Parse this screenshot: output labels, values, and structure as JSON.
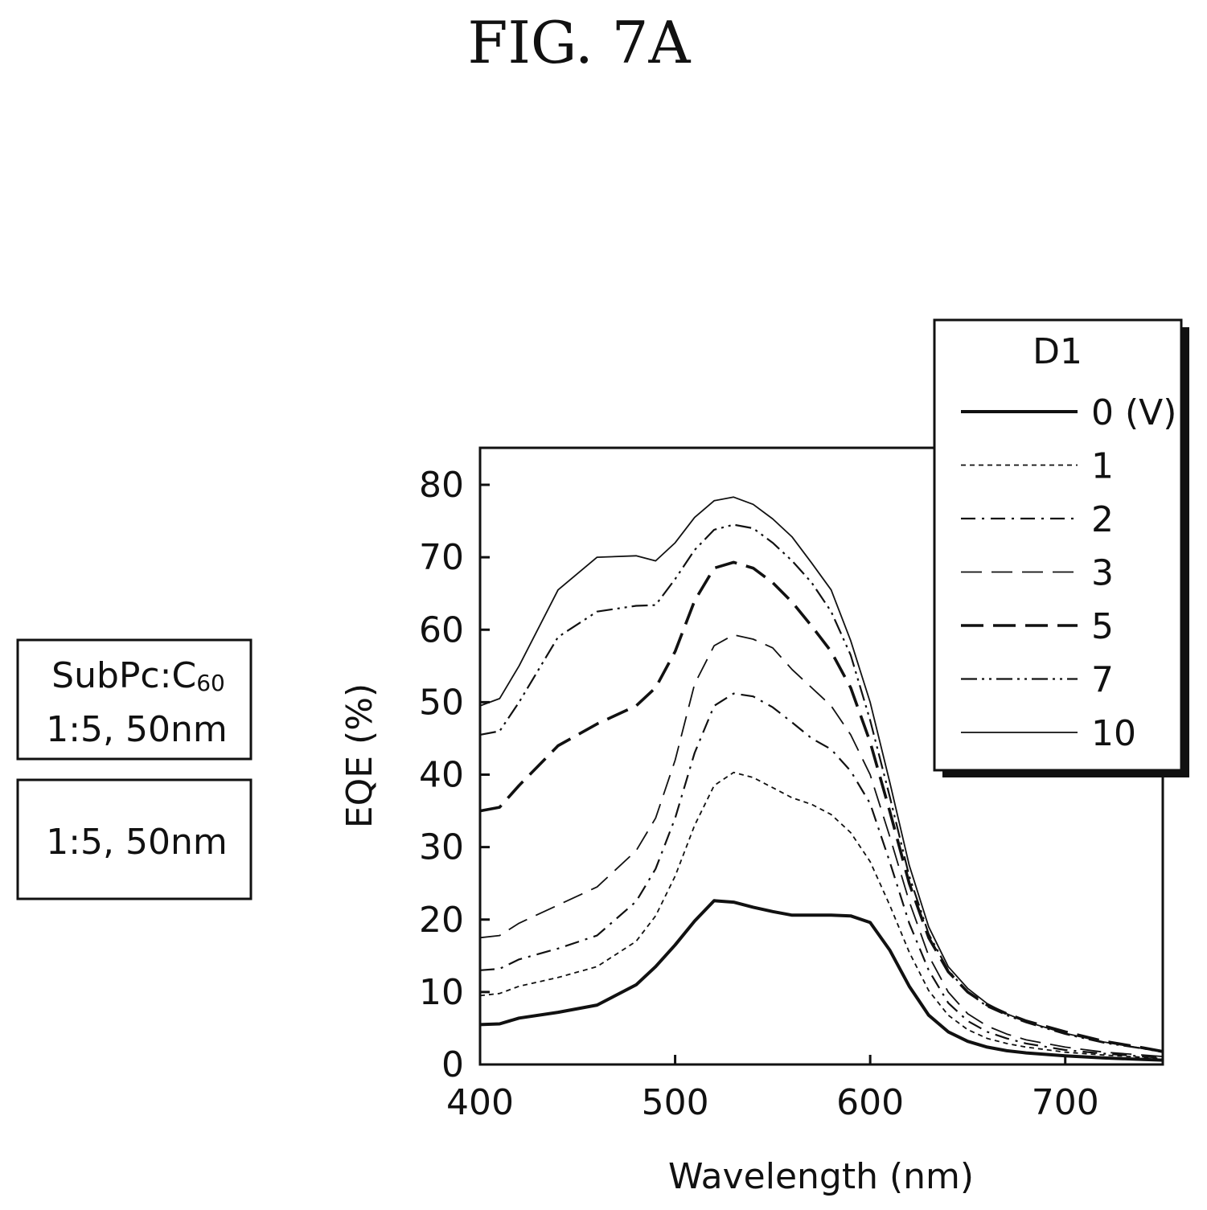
{
  "figure_label": "FIG. 7A",
  "sample_boxes": [
    {
      "line1": "SubPc:C",
      "line1_sub": "60",
      "line2": "1:5, 50nm"
    },
    {
      "line1": "",
      "line1_sub": "",
      "line2": "1:5, 50nm"
    }
  ],
  "chart_data": {
    "type": "line",
    "title": "",
    "xlabel": "Wavelength (nm)",
    "ylabel": "EQE (%)",
    "xlim": [
      400,
      750
    ],
    "ylim": [
      0,
      85
    ],
    "xticks": [
      400,
      500,
      600,
      700
    ],
    "yticks": [
      0,
      10,
      20,
      30,
      40,
      50,
      60,
      70,
      80
    ],
    "legend_title": "D1",
    "legend_placement": "top-right",
    "x": [
      400,
      410,
      420,
      440,
      460,
      480,
      490,
      500,
      510,
      520,
      530,
      540,
      550,
      560,
      570,
      580,
      590,
      600,
      610,
      620,
      630,
      640,
      650,
      660,
      670,
      680,
      700,
      720,
      740,
      750
    ],
    "series": [
      {
        "name": "0 (V)",
        "style": "solid-thick",
        "values": [
          5.5,
          5.6,
          6.4,
          7.2,
          8.2,
          11,
          13.5,
          16.5,
          19.8,
          22.6,
          22.4,
          21.7,
          21.1,
          20.6,
          20.6,
          20.6,
          20.5,
          19.6,
          15.8,
          10.8,
          6.8,
          4.5,
          3.2,
          2.4,
          1.9,
          1.6,
          1.2,
          0.9,
          0.7,
          0.6
        ]
      },
      {
        "name": "1",
        "style": "short-dash",
        "values": [
          9.5,
          9.8,
          10.8,
          12,
          13.5,
          17,
          20.5,
          26,
          33,
          38.5,
          40.3,
          39.6,
          38.2,
          36.8,
          35.9,
          34.5,
          32,
          28,
          22,
          15.5,
          10.2,
          6.8,
          4.8,
          3.6,
          2.9,
          2.4,
          1.7,
          1.3,
          1,
          0.8
        ]
      },
      {
        "name": "2",
        "style": "dash-dot",
        "values": [
          13,
          13.2,
          14.5,
          16,
          17.8,
          22.5,
          27,
          34,
          43,
          49.5,
          51.2,
          50.8,
          49.3,
          47.2,
          45,
          43.5,
          40.5,
          36,
          28,
          19.5,
          13,
          8.5,
          6,
          4.5,
          3.6,
          2.9,
          2,
          1.5,
          1.1,
          0.9
        ]
      },
      {
        "name": "3",
        "style": "long-dash-thin",
        "values": [
          17.5,
          17.8,
          19.5,
          22,
          24.5,
          29.5,
          34,
          42,
          52.5,
          57.8,
          59.3,
          58.7,
          57.5,
          54.5,
          52,
          49.5,
          45.5,
          40,
          31.5,
          22.5,
          15,
          10,
          7,
          5.3,
          4.2,
          3.4,
          2.4,
          1.7,
          1.3,
          1.1
        ]
      },
      {
        "name": "5",
        "style": "long-dash-thick",
        "values": [
          35,
          35.5,
          38.5,
          44,
          47,
          49.5,
          52,
          57,
          64,
          68.5,
          69.3,
          68.5,
          66.5,
          63.8,
          60.5,
          57,
          52,
          44.5,
          35,
          25,
          17.5,
          12.8,
          10,
          8.2,
          7,
          6,
          4.5,
          3.2,
          2.3,
          1.8
        ]
      },
      {
        "name": "7",
        "style": "dash-dot-dot",
        "values": [
          45.5,
          46,
          50,
          59,
          62.5,
          63.3,
          63.4,
          67,
          71,
          73.8,
          74.5,
          74,
          72,
          69.5,
          66.5,
          62.5,
          56.5,
          47.5,
          37,
          26,
          18,
          13,
          10,
          8,
          6.8,
          5.8,
          4.2,
          3,
          2.2,
          1.7
        ]
      },
      {
        "name": "10",
        "style": "solid-thin",
        "values": [
          49.5,
          50.5,
          55,
          65.5,
          70,
          70.2,
          69.5,
          72,
          75.5,
          77.8,
          78.3,
          77.3,
          75.3,
          72.8,
          69.2,
          65.5,
          58.5,
          50,
          39,
          27.5,
          19,
          13.5,
          10.5,
          8.4,
          7,
          5.9,
          4.3,
          3.1,
          2.2,
          1.8
        ]
      }
    ]
  }
}
